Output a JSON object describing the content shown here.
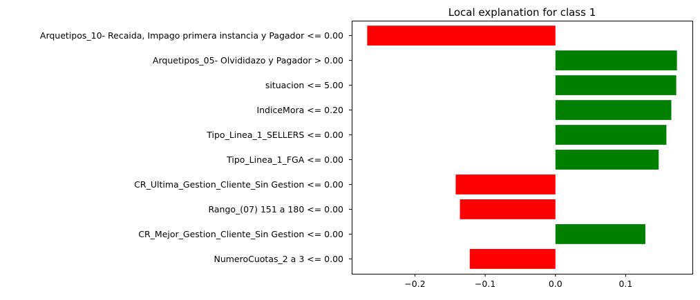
{
  "chart_data": {
    "type": "bar",
    "orientation": "horizontal",
    "title": "Local explanation for class 1",
    "xlabel": "",
    "ylabel": "",
    "xlim": [
      -0.29,
      0.195
    ],
    "xticks": [
      -0.2,
      -0.1,
      0.0,
      0.1
    ],
    "xtick_labels": [
      "−0.2",
      "−0.1",
      "0.0",
      "0.1"
    ],
    "grid": false,
    "categories": [
      "Arquetipos_10- Recaida, Impago primera instancia y Pagador <= 0.00",
      "Arquetipos_05- Olvididazo y Pagador > 0.00",
      "situacion <= 5.00",
      "IndiceMora <= 0.20",
      "Tipo_Linea_1_SELLERS <= 0.00",
      "Tipo_Linea_1_FGA <= 0.00",
      "CR_Ultima_Gestion_Cliente_Sin Gestion <= 0.00",
      "Rango_(07) 151 a 180 <= 0.00",
      "CR_Mejor_Gestion_Cliente_Sin Gestion <= 0.00",
      "NumeroCuotas_2 a 3 <= 0.00"
    ],
    "values": [
      -0.268,
      0.173,
      0.172,
      0.165,
      0.158,
      0.147,
      -0.142,
      -0.136,
      0.128,
      -0.122
    ],
    "colors": {
      "positive": "#008000",
      "negative": "#ff0000"
    }
  }
}
